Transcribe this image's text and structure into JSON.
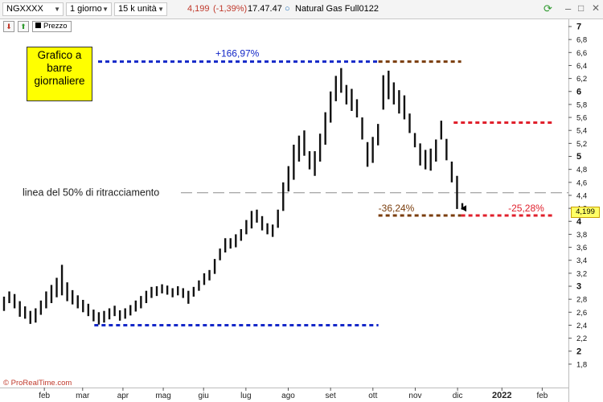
{
  "toolbar": {
    "symbol": "NGXXXX",
    "timeframe": "1 giorno",
    "units": "15 k unità",
    "price": "4,199",
    "change": "(-1,39%)",
    "time": "17.47.47",
    "instrument": "Natural Gas Full0122"
  },
  "subbar": {
    "legend": "Prezzo"
  },
  "watermark": "© ProRealTime.com",
  "annotation": {
    "line1": "Grafico a",
    "line2": "barre",
    "line3": "giornaliere"
  },
  "colors": {
    "blue": "#1428c8",
    "brown": "#7a3d0c",
    "red": "#e0202c",
    "up_price": "#c0392b"
  },
  "chart_data": {
    "type": "bar",
    "title": "",
    "series": [
      {
        "values": [
          [
            0,
            2.62,
            2.84
          ],
          [
            1.4,
            2.74,
            2.92
          ],
          [
            2.8,
            2.66,
            2.88
          ],
          [
            4.2,
            2.53,
            2.77
          ],
          [
            5.6,
            2.5,
            2.69
          ],
          [
            7,
            2.42,
            2.62
          ],
          [
            8.4,
            2.44,
            2.66
          ],
          [
            9.8,
            2.56,
            2.78
          ],
          [
            11.2,
            2.66,
            2.92
          ],
          [
            12.6,
            2.74,
            3.02
          ],
          [
            14,
            2.83,
            3.13
          ],
          [
            15.4,
            2.86,
            3.33
          ],
          [
            16.8,
            2.77,
            3.06
          ],
          [
            18.2,
            2.72,
            2.94
          ],
          [
            19.6,
            2.66,
            2.86
          ],
          [
            21,
            2.6,
            2.79
          ],
          [
            22.4,
            2.54,
            2.73
          ],
          [
            23.8,
            2.46,
            2.64
          ],
          [
            25.2,
            2.41,
            2.6
          ],
          [
            26.6,
            2.44,
            2.62
          ],
          [
            28,
            2.49,
            2.66
          ],
          [
            29.4,
            2.54,
            2.7
          ],
          [
            30.8,
            2.47,
            2.63
          ],
          [
            32.2,
            2.5,
            2.66
          ],
          [
            33.6,
            2.55,
            2.71
          ],
          [
            35,
            2.61,
            2.78
          ],
          [
            36.4,
            2.66,
            2.85
          ],
          [
            37.8,
            2.74,
            2.93
          ],
          [
            39.2,
            2.82,
            2.99
          ],
          [
            40.6,
            2.85,
            3.0
          ],
          [
            42,
            2.89,
            3.03
          ],
          [
            43.4,
            2.87,
            3.01
          ],
          [
            44.8,
            2.83,
            2.97
          ],
          [
            46.2,
            2.86,
            3.0
          ],
          [
            47.6,
            2.82,
            2.97
          ],
          [
            49,
            2.73,
            2.93
          ],
          [
            50.4,
            2.84,
            2.99
          ],
          [
            51.8,
            2.93,
            3.09
          ],
          [
            53.2,
            3.02,
            3.2
          ],
          [
            54.6,
            3.09,
            3.25
          ],
          [
            56,
            3.19,
            3.42
          ],
          [
            57.4,
            3.4,
            3.58
          ],
          [
            58.8,
            3.52,
            3.74
          ],
          [
            60.2,
            3.58,
            3.74
          ],
          [
            61.6,
            3.6,
            3.8
          ],
          [
            63,
            3.7,
            3.88
          ],
          [
            64.4,
            3.8,
            4.02
          ],
          [
            65.8,
            3.89,
            4.16
          ],
          [
            67.2,
            3.98,
            4.18
          ],
          [
            68.6,
            3.86,
            4.08
          ],
          [
            70,
            3.8,
            3.97
          ],
          [
            71.4,
            3.76,
            3.95
          ],
          [
            72.8,
            3.9,
            4.18
          ],
          [
            74.2,
            4.16,
            4.6
          ],
          [
            75.6,
            4.46,
            4.85
          ],
          [
            77,
            4.64,
            5.18
          ],
          [
            78.4,
            4.92,
            5.32
          ],
          [
            79.8,
            5.01,
            5.4
          ],
          [
            81.2,
            4.8,
            5.08
          ],
          [
            82.6,
            4.7,
            5.08
          ],
          [
            84,
            4.92,
            5.35
          ],
          [
            85.4,
            5.18,
            5.68
          ],
          [
            86.8,
            5.52,
            6.0
          ],
          [
            88.2,
            5.85,
            6.24
          ],
          [
            89.6,
            5.98,
            6.36
          ],
          [
            91,
            5.8,
            6.1
          ],
          [
            92.4,
            5.7,
            6.04
          ],
          [
            93.8,
            5.6,
            5.88
          ],
          [
            95.2,
            5.26,
            5.6
          ],
          [
            96.6,
            4.84,
            5.22
          ],
          [
            98,
            4.9,
            5.3
          ],
          [
            99.4,
            5.17,
            5.5
          ],
          [
            100.8,
            5.72,
            6.25
          ],
          [
            102.2,
            5.88,
            6.32
          ],
          [
            103.6,
            5.8,
            6.14
          ],
          [
            105,
            5.66,
            6.02
          ],
          [
            106.4,
            5.57,
            5.94
          ],
          [
            107.8,
            5.36,
            5.66
          ],
          [
            109.2,
            5.14,
            5.36
          ],
          [
            110.6,
            4.86,
            5.2
          ],
          [
            112,
            4.8,
            5.1
          ],
          [
            113.4,
            4.78,
            5.12
          ],
          [
            114.8,
            4.92,
            5.26
          ],
          [
            116.2,
            5.26,
            5.55
          ],
          [
            117.6,
            4.94,
            5.27
          ],
          [
            119,
            4.6,
            4.92
          ],
          [
            120.4,
            4.19,
            4.7
          ],
          [
            121.8,
            4.18,
            4.28
          ]
        ]
      }
    ],
    "xlabel": "",
    "ylabel": "",
    "ylim": [
      1.7,
      7.0
    ],
    "x_tick_labels": [
      "feb",
      "mar",
      "apr",
      "mag",
      "giu",
      "lug",
      "ago",
      "set",
      "ott",
      "nov",
      "dic",
      "2022",
      "feb"
    ],
    "y_tick_labels": [
      "7",
      "6,8",
      "6,6",
      "6,4",
      "6,2",
      "6",
      "5,8",
      "5,6",
      "5,4",
      "5,2",
      "5",
      "4,8",
      "4,6",
      "4,4",
      "4,2",
      "4",
      "3,8",
      "3,6",
      "3,4",
      "3,2",
      "3",
      "2,8",
      "2,6",
      "2,4",
      "2,2",
      "2",
      "1,8"
    ],
    "current_price_label": "4,199",
    "retracement_label": "linea del 50% di ritracciamento",
    "pct_labels": {
      "rise": "+166,97%",
      "fall_total": "-36,24%",
      "fall_recent": "-25,28%"
    },
    "levels": {
      "low": 2.4,
      "high": 6.46,
      "mid": 4.44,
      "recent_high": 5.52,
      "current": 4.199
    },
    "grid": false,
    "legend": "top-left"
  }
}
